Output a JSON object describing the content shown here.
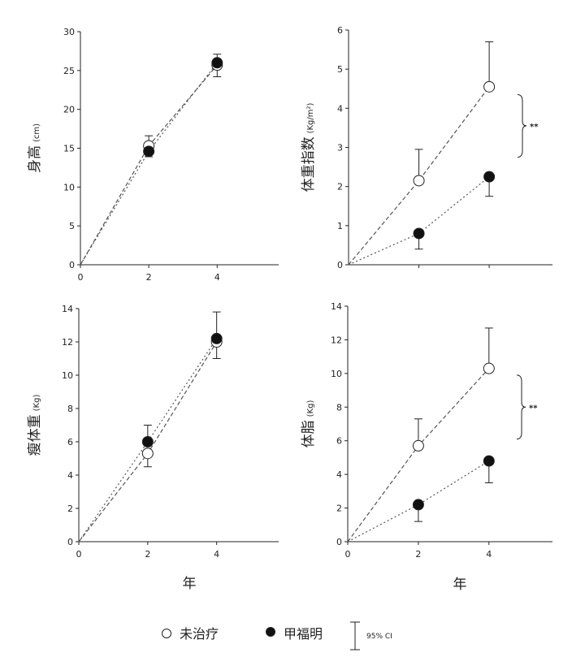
{
  "legend": {
    "untreated": "未治疗",
    "treated": "甲福明",
    "ci": "95% CI"
  },
  "colors": {
    "axis": "#222222",
    "untreated_fill": "#ffffff",
    "treated_fill": "#111111",
    "line": "#555555"
  },
  "chart_data": [
    {
      "type": "line",
      "ylabel": "身高",
      "yunit": "(cm)",
      "xlabel": "",
      "xlim": [
        0,
        5.8
      ],
      "ylim": [
        0,
        30
      ],
      "xticks": [
        0,
        2,
        4
      ],
      "yticks": [
        0,
        5,
        10,
        15,
        20,
        25,
        30
      ],
      "series": [
        {
          "name": "未治疗",
          "marker": "open",
          "x": [
            0,
            2,
            4
          ],
          "y": [
            0,
            15.3,
            25.7
          ],
          "ci_upper": [
            null,
            16.6,
            27.1
          ],
          "ci_lower": [
            null,
            null,
            24.2
          ]
        },
        {
          "name": "甲福明",
          "marker": "filled",
          "x": [
            0,
            2,
            4
          ],
          "y": [
            0,
            14.6,
            26.0
          ],
          "ci_upper": [
            null,
            null,
            null
          ],
          "ci_lower": [
            null,
            13.9,
            null
          ]
        }
      ],
      "significance": ""
    },
    {
      "type": "line",
      "ylabel": "体重指数",
      "yunit": "(Kg/m²)",
      "xlabel": "",
      "xlim": [
        0,
        5.8
      ],
      "ylim": [
        0,
        6
      ],
      "xticks": [],
      "yticks": [
        0,
        1,
        2,
        3,
        4,
        5,
        6
      ],
      "series": [
        {
          "name": "未治疗",
          "marker": "open",
          "x": [
            0,
            2,
            4
          ],
          "y": [
            0,
            2.15,
            4.55
          ],
          "ci_upper": [
            null,
            2.95,
            5.7
          ],
          "ci_lower": [
            null,
            null,
            null
          ]
        },
        {
          "name": "甲福明",
          "marker": "filled",
          "x": [
            0,
            2,
            4
          ],
          "y": [
            0,
            0.8,
            2.25
          ],
          "ci_upper": [
            null,
            null,
            null
          ],
          "ci_lower": [
            null,
            0.4,
            1.75
          ]
        }
      ],
      "significance": "**",
      "bracket_range": [
        2.75,
        4.35
      ]
    },
    {
      "type": "line",
      "ylabel": "瘦体重",
      "yunit": "(Kg)",
      "xlabel": "年",
      "xlim": [
        0,
        5.8
      ],
      "ylim": [
        0,
        14
      ],
      "xticks": [
        0,
        2,
        4
      ],
      "yticks": [
        0,
        2,
        4,
        6,
        8,
        10,
        12,
        14
      ],
      "series": [
        {
          "name": "未治疗",
          "marker": "open",
          "x": [
            0,
            2,
            4
          ],
          "y": [
            0,
            5.3,
            12.0
          ],
          "ci_upper": [
            null,
            null,
            null
          ],
          "ci_lower": [
            null,
            4.5,
            11.0
          ]
        },
        {
          "name": "甲福明",
          "marker": "filled",
          "x": [
            0,
            2,
            4
          ],
          "y": [
            0,
            6.0,
            12.2
          ],
          "ci_upper": [
            null,
            7.0,
            13.8
          ],
          "ci_lower": [
            null,
            null,
            null
          ]
        }
      ],
      "significance": ""
    },
    {
      "type": "line",
      "ylabel": "体脂",
      "yunit": "(Kg)",
      "xlabel": "年",
      "xlim": [
        0,
        5.8
      ],
      "ylim": [
        0,
        14
      ],
      "xticks": [
        0,
        2,
        4
      ],
      "yticks": [
        0,
        2,
        4,
        6,
        8,
        10,
        12,
        14
      ],
      "series": [
        {
          "name": "未治疗",
          "marker": "open",
          "x": [
            0,
            2,
            4
          ],
          "y": [
            0,
            5.7,
            10.3
          ],
          "ci_upper": [
            null,
            7.3,
            12.7
          ],
          "ci_lower": [
            null,
            null,
            null
          ]
        },
        {
          "name": "甲福明",
          "marker": "filled",
          "x": [
            0,
            2,
            4
          ],
          "y": [
            0,
            2.2,
            4.8
          ],
          "ci_upper": [
            null,
            null,
            null
          ],
          "ci_lower": [
            null,
            1.2,
            3.5
          ]
        }
      ],
      "significance": "**",
      "bracket_range": [
        6.1,
        9.9
      ]
    }
  ]
}
